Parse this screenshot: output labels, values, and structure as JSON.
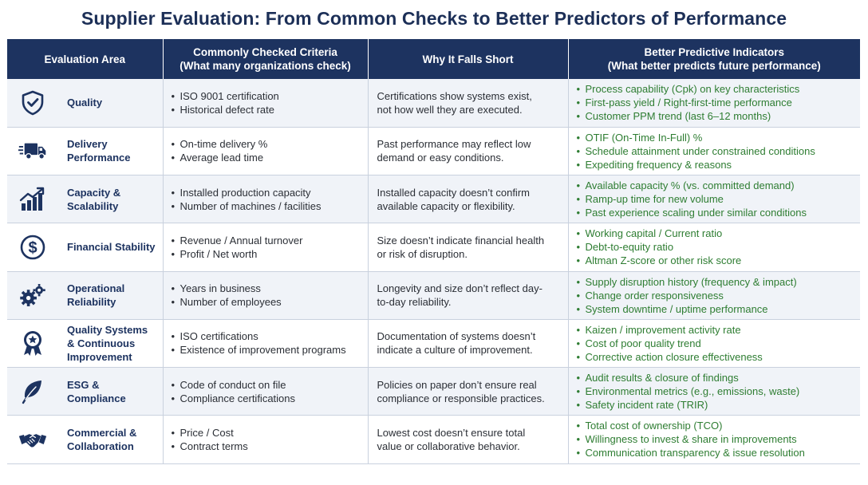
{
  "title": "Supplier Evaluation: From Common Checks to Better Predictors of Performance",
  "headers": {
    "area": "Evaluation Area",
    "common_line1": "Commonly Checked Criteria",
    "common_line2": "(What many organizations check)",
    "why": "Why It Falls Short",
    "better_line1": "Better Predictive Indicators",
    "better_line2": "(What better predicts future performance)"
  },
  "colors": {
    "header_bg": "#1d3360",
    "area_text": "#1d3360",
    "predictor_text": "#2e7d32",
    "stripe": "#f0f3f8"
  },
  "rows": [
    {
      "icon": "shield-check-icon",
      "area": "Quality",
      "common": [
        "ISO 9001 certification",
        "Historical defect rate"
      ],
      "why": [
        "Certifications show systems exist,",
        "not how well they are executed."
      ],
      "better": [
        "Process capability (Cpk) on key characteristics",
        "First-pass yield / Right-first-time performance",
        "Customer PPM trend (last 6–12 months)"
      ]
    },
    {
      "icon": "delivery-truck-icon",
      "area": "Delivery Performance",
      "common": [
        "On-time delivery %",
        "Average lead time"
      ],
      "why": [
        "Past performance may reflect low",
        "demand or easy conditions."
      ],
      "better": [
        "OTIF (On-Time In-Full) %",
        "Schedule attainment under constrained conditions",
        "Expediting frequency & reasons"
      ]
    },
    {
      "icon": "growth-chart-icon",
      "area": "Capacity & Scalability",
      "common": [
        "Installed production capacity",
        "Number of machines / facilities"
      ],
      "why": [
        "Installed capacity doesn’t confirm",
        "available capacity or flexibility."
      ],
      "better": [
        "Available capacity % (vs. committed demand)",
        "Ramp-up time for new volume",
        "Past experience scaling under similar conditions"
      ]
    },
    {
      "icon": "dollar-coin-icon",
      "area": "Financial Stability",
      "common": [
        "Revenue / Annual turnover",
        "Profit / Net worth"
      ],
      "why": [
        "Size doesn’t indicate financial health",
        "or risk of disruption."
      ],
      "better": [
        "Working capital / Current ratio",
        "Debt-to-equity ratio",
        "Altman Z-score or other risk score"
      ]
    },
    {
      "icon": "gears-icon",
      "area": "Operational Reliability",
      "common": [
        "Years in business",
        "Number of employees"
      ],
      "why": [
        "Longevity and size don’t reflect day-",
        "to-day reliability."
      ],
      "better": [
        "Supply disruption history (frequency & impact)",
        "Change order responsiveness",
        "System downtime / uptime performance"
      ]
    },
    {
      "icon": "award-ribbon-icon",
      "area": "Quality Systems & Continuous Improvement",
      "common": [
        "ISO certifications",
        "Existence of improvement programs"
      ],
      "why": [
        "Documentation of systems doesn’t",
        "indicate a culture of improvement."
      ],
      "better": [
        "Kaizen / improvement activity rate",
        "Cost of poor quality trend",
        "Corrective action closure effectiveness"
      ]
    },
    {
      "icon": "leaf-icon",
      "area": "ESG & Compliance",
      "common": [
        "Code of conduct on file",
        "Compliance certifications"
      ],
      "why": [
        "Policies on paper don’t ensure real",
        "compliance or responsible practices."
      ],
      "better": [
        "Audit results & closure of findings",
        "Environmental metrics (e.g., emissions, waste)",
        "Safety incident rate (TRIR)"
      ]
    },
    {
      "icon": "handshake-icon",
      "area": "Commercial & Collaboration",
      "common": [
        "Price / Cost",
        "Contract terms"
      ],
      "why": [
        "Lowest cost doesn’t ensure total",
        "value or collaborative behavior."
      ],
      "better": [
        "Total cost of ownership (TCO)",
        "Willingness to invest & share in improvements",
        "Communication transparency & issue resolution"
      ]
    }
  ]
}
